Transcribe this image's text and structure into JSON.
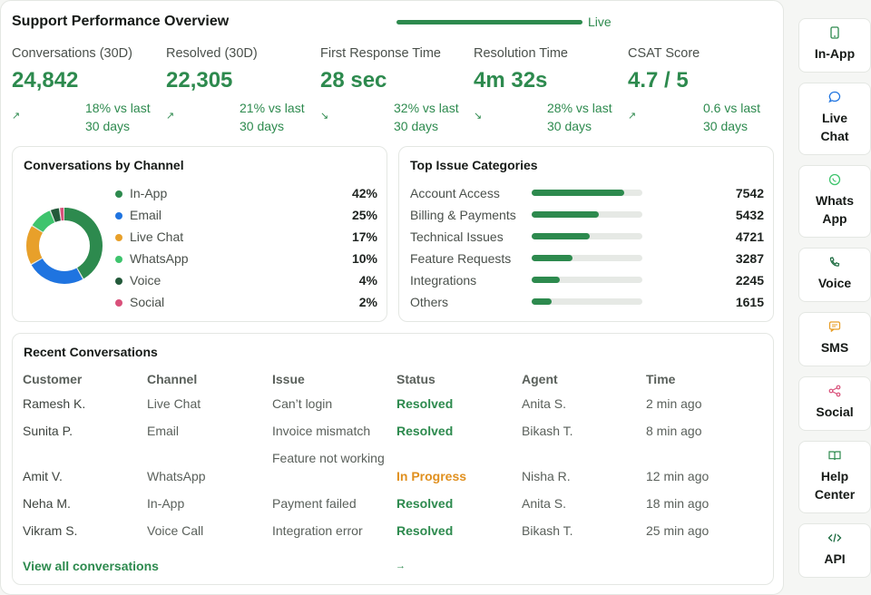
{
  "header": {
    "title": "Support Performance Overview",
    "live_label": "Live"
  },
  "kpis": [
    {
      "label": "Conversations (30D)",
      "value": "24,842",
      "delta": "18% vs last 30 days",
      "trend": "up"
    },
    {
      "label": "Resolved (30D)",
      "value": "22,305",
      "delta": "21% vs last 30 days",
      "trend": "up"
    },
    {
      "label": "First Response Time",
      "value": "28 sec",
      "delta": "32% vs last 30 days",
      "trend": "down"
    },
    {
      "label": "Resolution Time",
      "value": "4m 32s",
      "delta": "28% vs last 30 days",
      "trend": "down"
    },
    {
      "label": "CSAT Score",
      "value": "4.7 / 5",
      "delta": "0.6 vs last 30 days",
      "trend": "up"
    }
  ],
  "channels": {
    "title": "Conversations by Channel",
    "items": [
      {
        "name": "In-App",
        "pct": "42%",
        "value": 42,
        "color": "#2d8a4e"
      },
      {
        "name": "Email",
        "pct": "25%",
        "value": 25,
        "color": "#1f74e0"
      },
      {
        "name": "Live Chat",
        "pct": "17%",
        "value": 17,
        "color": "#e8a02a"
      },
      {
        "name": "WhatsApp",
        "pct": "10%",
        "value": 10,
        "color": "#3ec46d"
      },
      {
        "name": "Voice",
        "pct": "4%",
        "value": 4,
        "color": "#23593a"
      },
      {
        "name": "Social",
        "pct": "2%",
        "value": 2,
        "color": "#d9507a"
      }
    ]
  },
  "issues": {
    "title": "Top Issue Categories",
    "items": [
      {
        "name": "Account Access",
        "count": "7542",
        "value": 7542
      },
      {
        "name": "Billing & Payments",
        "count": "5432",
        "value": 5432
      },
      {
        "name": "Technical Issues",
        "count": "4721",
        "value": 4721
      },
      {
        "name": "Feature Requests",
        "count": "3287",
        "value": 3287
      },
      {
        "name": "Integrations",
        "count": "2245",
        "value": 2245
      },
      {
        "name": "Others",
        "count": "1615",
        "value": 1615
      }
    ]
  },
  "recent": {
    "title": "Recent Conversations",
    "columns": [
      "Customer",
      "Channel",
      "Issue",
      "Status",
      "Agent",
      "Time"
    ],
    "rows": [
      {
        "customer": "Ramesh K.",
        "channel": "Live Chat",
        "issue": "Can’t login",
        "status": "Resolved",
        "agent": "Anita S.",
        "time": "2 min ago"
      },
      {
        "customer": "Sunita P.",
        "channel": "Email",
        "issue": "Invoice mismatch",
        "status": "Resolved",
        "agent": "Bikash T.",
        "time": "8 min ago"
      },
      {
        "customer": "Amit V.",
        "channel": "WhatsApp",
        "issue": "Feature not working",
        "status": "In Progress",
        "agent": "Nisha R.",
        "time": "12 min ago"
      },
      {
        "customer": "Neha M.",
        "channel": "In-App",
        "issue": "Payment failed",
        "status": "Resolved",
        "agent": "Anita S.",
        "time": "18 min ago"
      },
      {
        "customer": "Vikram S.",
        "channel": "Voice Call",
        "issue": "Integration error",
        "status": "Resolved",
        "agent": "Bikash T.",
        "time": "25 min ago"
      }
    ],
    "view_all": "View all conversations"
  },
  "sidebar": {
    "items": [
      {
        "label": "In-App",
        "icon": "phone-icon"
      },
      {
        "label": "Live Chat",
        "icon": "chat-bubble-icon"
      },
      {
        "label": "Whats App",
        "icon": "whatsapp-icon"
      },
      {
        "label": "Voice",
        "icon": "phone-call-icon"
      },
      {
        "label": "SMS",
        "icon": "sms-icon"
      },
      {
        "label": "Social",
        "icon": "share-icon"
      },
      {
        "label": "Help Center",
        "icon": "book-icon"
      },
      {
        "label": "API",
        "icon": "code-icon"
      }
    ]
  },
  "colors": {
    "accent": "#2d8a4e",
    "warning": "#e0901f",
    "donut_track": "#e6e9e5"
  }
}
